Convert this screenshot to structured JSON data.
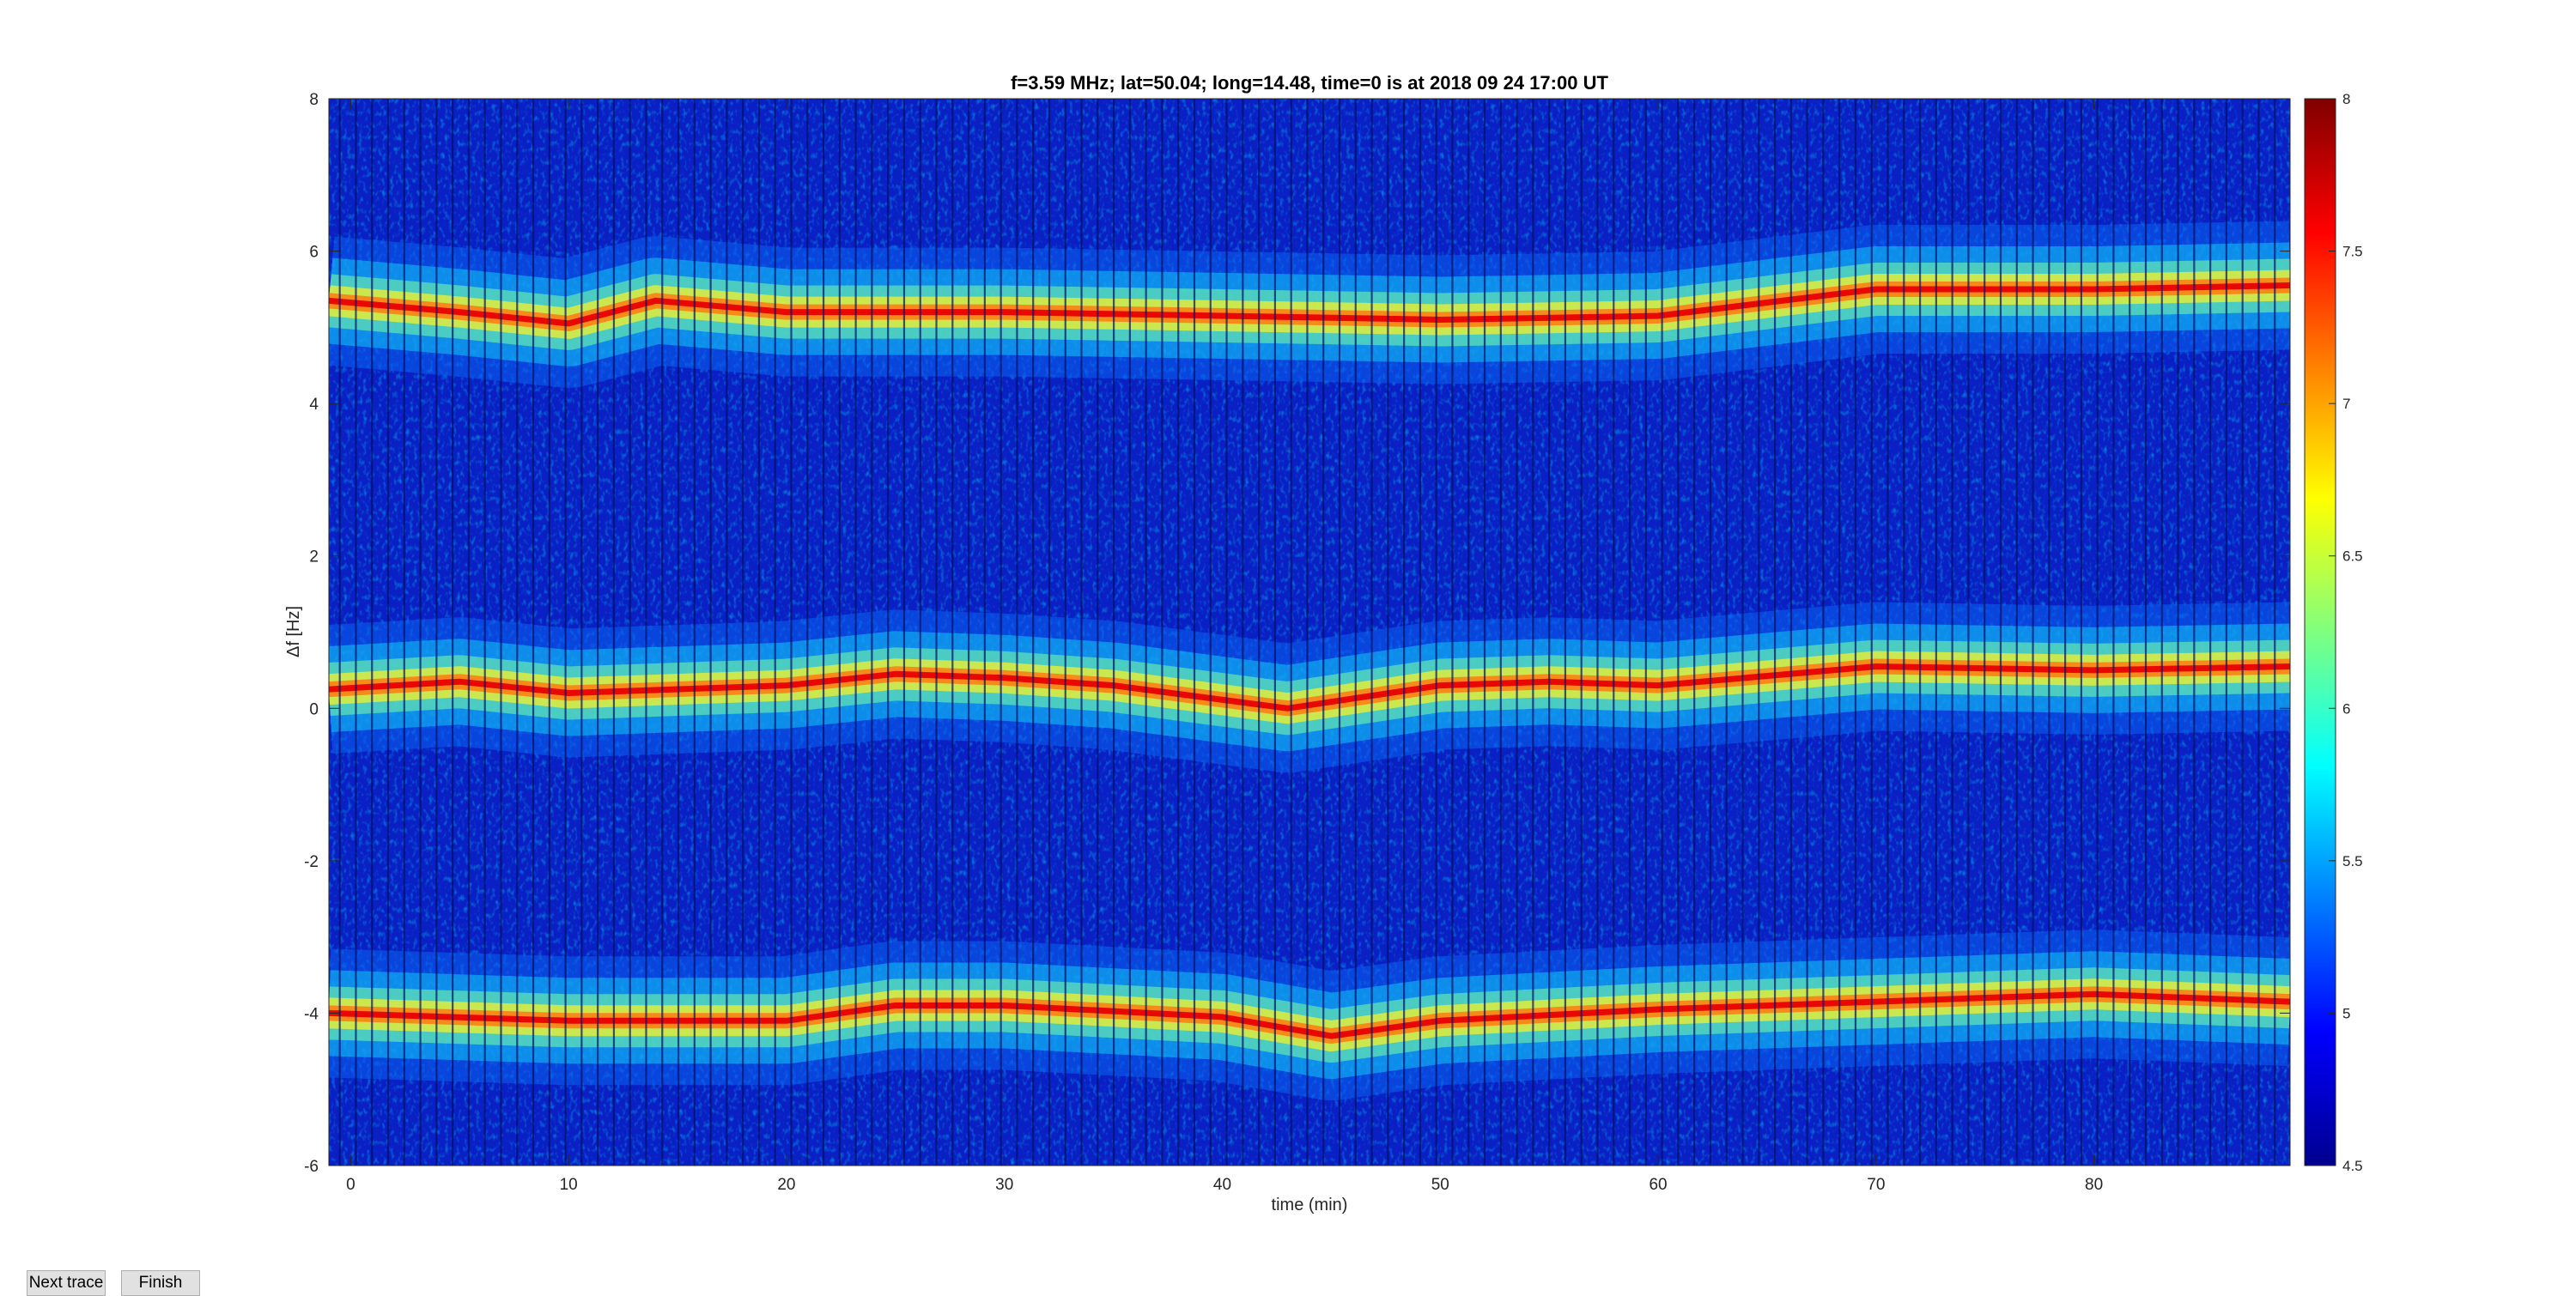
{
  "buttons": {
    "next_label": "Next trace",
    "finish_label": "Finish"
  },
  "chart_data": {
    "type": "heatmap",
    "title": "f=3.59 MHz;  lat=50.04; long=14.48, time=0 is at 2018 09 24 17:00 UT",
    "xlabel": "time (min)",
    "ylabel": "Δf [Hz]",
    "xlim": [
      -1,
      89
    ],
    "ylim": [
      -6,
      8
    ],
    "xticks": [
      0,
      10,
      20,
      30,
      40,
      50,
      60,
      70,
      80
    ],
    "yticks": [
      -6,
      -4,
      -2,
      0,
      2,
      4,
      6,
      8
    ],
    "colorbar": {
      "range": [
        4.5,
        8
      ],
      "ticks": [
        4.5,
        5,
        5.5,
        6,
        6.5,
        7,
        7.5,
        8
      ],
      "colormap": "jet"
    },
    "traces": [
      {
        "x": [
          -1,
          5,
          10,
          14,
          20,
          30,
          40,
          50,
          60,
          70,
          80,
          89
        ],
        "y": [
          5.35,
          5.2,
          5.05,
          5.35,
          5.2,
          5.2,
          5.15,
          5.1,
          5.15,
          5.5,
          5.5,
          5.55
        ]
      },
      {
        "x": [
          -1,
          5,
          10,
          20,
          25,
          30,
          35,
          43,
          50,
          55,
          60,
          70,
          80,
          89
        ],
        "y": [
          0.25,
          0.35,
          0.2,
          0.3,
          0.45,
          0.4,
          0.3,
          0.0,
          0.3,
          0.35,
          0.3,
          0.55,
          0.5,
          0.55
        ]
      },
      {
        "x": [
          -1,
          10,
          20,
          25,
          30,
          40,
          45,
          50,
          60,
          70,
          80,
          89
        ],
        "y": [
          -4.0,
          -4.1,
          -4.1,
          -3.9,
          -3.9,
          -4.05,
          -4.3,
          -4.1,
          -3.95,
          -3.85,
          -3.75,
          -3.85
        ]
      }
    ]
  }
}
